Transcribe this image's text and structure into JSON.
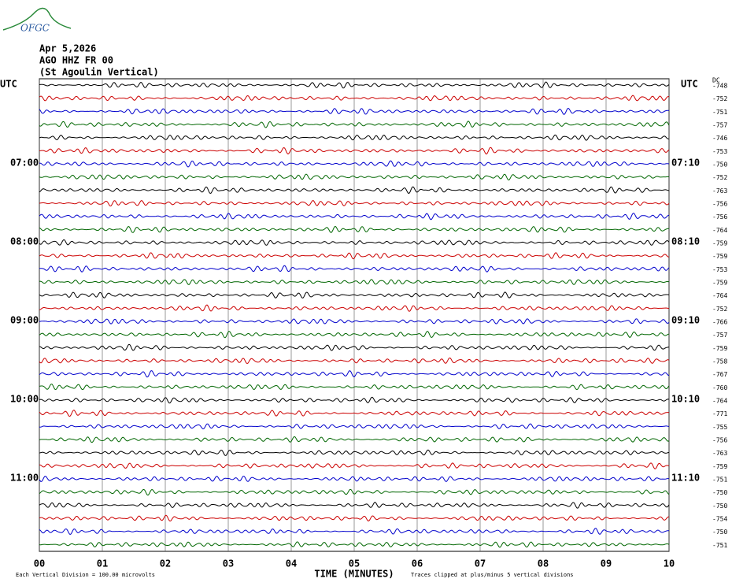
{
  "header": {
    "logo": "OFGC",
    "date": "Apr 5,2026",
    "station": "AGO HHZ FR 00",
    "site": "(St Agoulin Vertical)"
  },
  "left_labels": [
    "UTC",
    "07:00",
    "08:00",
    "09:00",
    "10:00",
    "11:00"
  ],
  "right_labels": [
    "UTC",
    "07:10",
    "08:10",
    "09:10",
    "10:10",
    "11:10"
  ],
  "dc_label": "DC",
  "dc_offsets": [
    -748,
    -752,
    -751,
    -757,
    -746,
    -753,
    -750,
    -752,
    -763,
    -756,
    -756,
    -764,
    -759,
    -759,
    -753,
    -759,
    -764,
    -752,
    -766,
    -757,
    -759,
    -758,
    -767,
    -760,
    -764,
    -771,
    -755,
    -756,
    -763,
    -759,
    -751,
    -750,
    -750,
    -754,
    -750,
    -751
  ],
  "trace_colors": [
    "#000000",
    "#cc0000",
    "#0000cc",
    "#006600"
  ],
  "x_ticks": [
    "00",
    "01",
    "02",
    "03",
    "04",
    "05",
    "06",
    "07",
    "08",
    "09",
    "10"
  ],
  "x_label": "TIME (MINUTES)",
  "footer": {
    "scale_note": "Each Vertical Division =  100.00 microvolts",
    "clip_note": "Traces clipped at plus/minus 5 vertical divisions"
  }
}
